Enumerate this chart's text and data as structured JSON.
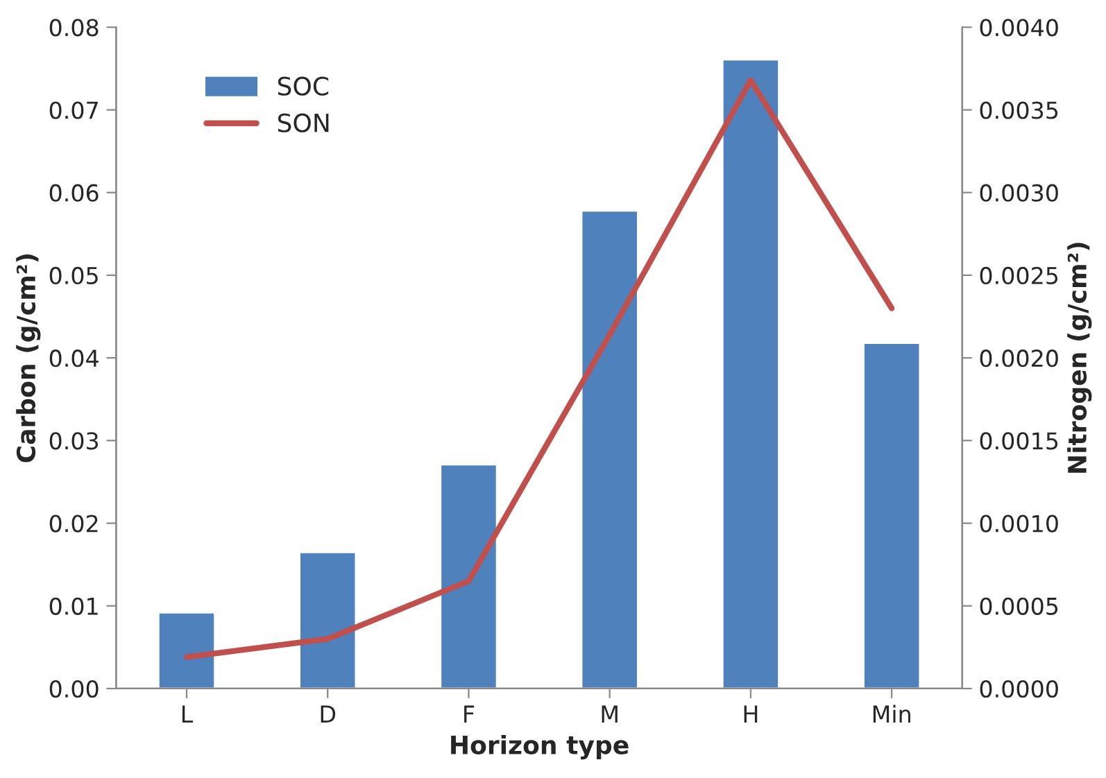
{
  "chart_data": {
    "type": "bar",
    "xlabel": "Horizon type",
    "ylabel": "Carbon (g/cm²)",
    "y2label": "Nitrogen (g/cm²)",
    "categories": [
      "L",
      "D",
      "F",
      "M",
      "H",
      "Min"
    ],
    "series": [
      {
        "name": "SOC",
        "color": "#4f81bd",
        "values": [
          0.0092,
          0.0165,
          0.0271,
          0.0578,
          0.0761,
          0.0418
        ]
      },
      {
        "name": "SON",
        "type": "line",
        "axis": "y2",
        "color": "#c0504d",
        "values": [
          0.00019,
          0.0003,
          0.00065,
          0.00214,
          0.00368,
          0.0023
        ]
      }
    ],
    "ylim": [
      0,
      0.08
    ],
    "yticks": [
      {
        "value": 0,
        "label": "0.00"
      },
      {
        "value": 0.01,
        "label": "0.01"
      },
      {
        "value": 0.02,
        "label": "0.02"
      },
      {
        "value": 0.03,
        "label": "0.03"
      },
      {
        "value": 0.04,
        "label": "0.04"
      },
      {
        "value": 0.05,
        "label": "0.05"
      },
      {
        "value": 0.06,
        "label": "0.06"
      },
      {
        "value": 0.07,
        "label": "0.07"
      },
      {
        "value": 0.08,
        "label": "0.08"
      }
    ],
    "y2lim": [
      0,
      0.004
    ],
    "y2ticks": [
      {
        "value": 0,
        "label": "0.0000"
      },
      {
        "value": 0.0005,
        "label": "0.0005"
      },
      {
        "value": 0.001,
        "label": "0.0010"
      },
      {
        "value": 0.0015,
        "label": "0.0015"
      },
      {
        "value": 0.002,
        "label": "0.0020"
      },
      {
        "value": 0.0025,
        "label": "0.0025"
      },
      {
        "value": 0.003,
        "label": "0.0030"
      },
      {
        "value": 0.0035,
        "label": "0.0035"
      },
      {
        "value": 0.004,
        "label": "0.0040"
      }
    ],
    "legend": "top left",
    "grid": false,
    "marker": "none"
  }
}
